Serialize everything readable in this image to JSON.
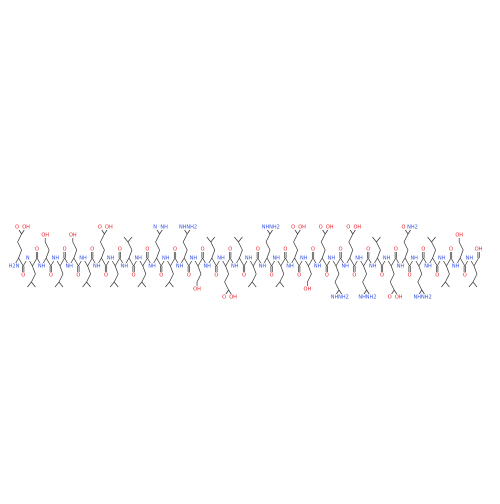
{
  "molecule": {
    "residues": [
      {
        "atoms": [
          "H2N",
          "O"
        ],
        "side": [
          "O",
          "OH"
        ]
      },
      {
        "atoms": [
          "N",
          "O"
        ]
      },
      {
        "atoms": [
          "NH",
          "O"
        ],
        "side": [
          "OH"
        ]
      },
      {
        "atoms": [
          "NH",
          "O"
        ]
      },
      {
        "atoms": [
          "NH",
          "O"
        ],
        "side": [
          "OH"
        ]
      },
      {
        "atoms": [
          "NH",
          "O"
        ]
      },
      {
        "atoms": [
          "NH",
          "O"
        ],
        "side": [
          "O",
          "OH"
        ]
      },
      {
        "atoms": [
          "NH",
          "O"
        ]
      },
      {
        "atoms": [
          "NH",
          "O"
        ]
      },
      {
        "atoms": [
          "NH",
          "O"
        ]
      },
      {
        "atoms": [
          "NH",
          "O"
        ],
        "side": [
          "N",
          "NH"
        ]
      },
      {
        "atoms": [
          "NH",
          "O"
        ]
      },
      {
        "atoms": [
          "NH",
          "O"
        ],
        "side": [
          "NH",
          "NH2"
        ]
      },
      {
        "atoms": [
          "NH",
          "O"
        ],
        "side": [
          "OH"
        ]
      },
      {
        "atoms": [
          "NH",
          "O"
        ]
      },
      {
        "atoms": [
          "NH",
          "O"
        ],
        "side": [
          "O",
          "OH"
        ]
      },
      {
        "atoms": [
          "NH",
          "O"
        ]
      },
      {
        "atoms": [
          "NH",
          "O"
        ]
      },
      {
        "atoms": [
          "NH",
          "O"
        ],
        "side": [
          "NH",
          "NH2"
        ]
      },
      {
        "atoms": [
          "NH",
          "O"
        ]
      },
      {
        "atoms": [
          "NH",
          "O"
        ],
        "side": [
          "O",
          "OH"
        ]
      },
      {
        "atoms": [
          "NH",
          "O"
        ],
        "side": [
          "OH"
        ]
      },
      {
        "atoms": [
          "NH",
          "O"
        ],
        "side": [
          "O",
          "OH"
        ]
      },
      {
        "atoms": [
          "NH",
          "O"
        ],
        "side": [
          "NH",
          "NH2"
        ]
      },
      {
        "atoms": [
          "NH",
          "O"
        ],
        "side": [
          "O",
          "OH"
        ]
      },
      {
        "atoms": [
          "NH",
          "O"
        ],
        "side": [
          "NH",
          "NH2"
        ]
      },
      {
        "atoms": [
          "NH",
          "O"
        ]
      },
      {
        "atoms": [
          "NH",
          "O"
        ],
        "side": [
          "O",
          "OH"
        ]
      },
      {
        "atoms": [
          "NH",
          "O"
        ],
        "side": [
          "O",
          "NH2"
        ]
      },
      {
        "atoms": [
          "NH",
          "O"
        ],
        "side": [
          "NH",
          "NH2"
        ]
      },
      {
        "atoms": [
          "NH",
          "O"
        ]
      },
      {
        "atoms": [
          "NH",
          "O"
        ]
      },
      {
        "atoms": [
          "NH",
          "O"
        ],
        "side": [
          "OH"
        ]
      },
      {
        "atoms": [
          "NH",
          "OH"
        ]
      }
    ]
  }
}
